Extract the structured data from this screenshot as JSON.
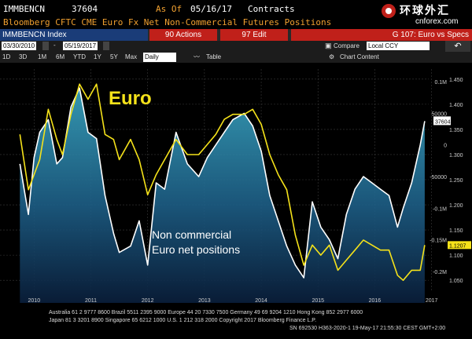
{
  "terminal": {
    "ticker": "IMMBENCN",
    "value": "37604",
    "as_of_label": "As Of",
    "as_of_date": "05/16/17",
    "units": "Contracts",
    "description": "Bloomberg CFTC CME Euro Fx Net Non-Commercial Futures Positions"
  },
  "logo": {
    "name": "环球外汇",
    "site": "cnforex.com"
  },
  "toolbar": {
    "index_label": "IMMBENCN Index",
    "actions_label": "90 Actions",
    "edit_label": "97 Edit",
    "g_label": "G 107: Euro vs Specs"
  },
  "date_bar": {
    "start_date": "03/30/2010",
    "end_date": "05/19/2017",
    "compare_label": "Compare",
    "currency": "Local CCY"
  },
  "period_bar": {
    "periods": [
      "1D",
      "3D",
      "1M",
      "6M",
      "YTD",
      "1Y",
      "5Y",
      "Max"
    ],
    "frequency": "Daily",
    "table_label": "Table",
    "chart_content_label": "Chart Content"
  },
  "footer": {
    "line1": "Australia 61 2 9777 8600 Brazil 5511 2395 9000 Europe 44 20 7330 7500 Germany 49 69 9204 1210 Hong Kong 852 2977 6000",
    "line2": "Japan 81 3 3201 8900          Singapore 65 6212 1000          U.S. 1 212 318 2000          Copyright 2017 Bloomberg Finance L.P.",
    "line3": "SN 692530 H363-2020-1 19-May-17 21:55:30 CEST GMT+2:00"
  },
  "colors": {
    "euro_line": "#f5e21a",
    "positions_line": "#ffffff",
    "area_top": "#2f9ab8",
    "area_bottom": "#0a1f3c",
    "annotation_euro": "#f5e21a",
    "last_value_label": "#f5e21a"
  },
  "chart_data": {
    "type": "line",
    "x_tick_labels": [
      "2010",
      "2011",
      "2012",
      "2013",
      "2014",
      "2015",
      "2016",
      "2017"
    ],
    "annotations": [
      "Euro",
      "Non commercial",
      "Euro net positions"
    ],
    "right_axis_prices": {
      "ticks": [
        "1.450",
        "1.400",
        "1.350",
        "1.300",
        "1.250",
        "1.200",
        "1.150",
        "1.100",
        "1.050"
      ],
      "ylim": [
        1.03,
        1.47
      ]
    },
    "left_axis_positions": {
      "ticks": [
        "0.1M",
        "50000",
        "0",
        "-50000",
        "-0.1M",
        "-0.15M",
        "-0.2M"
      ],
      "ylim": [
        -0.23,
        0.12
      ]
    },
    "last_values": {
      "positions": "37604",
      "euro": "1.1207"
    },
    "series": [
      {
        "name": "Euro",
        "axis": "right",
        "x": [
          2010.25,
          2010.4,
          2010.5,
          2010.6,
          2010.75,
          2010.9,
          2011.0,
          2011.15,
          2011.3,
          2011.45,
          2011.6,
          2011.75,
          2011.9,
          2012.0,
          2012.2,
          2012.35,
          2012.5,
          2012.65,
          2012.8,
          2013.0,
          2013.2,
          2013.4,
          2013.55,
          2013.7,
          2013.85,
          2014.0,
          2014.2,
          2014.35,
          2014.5,
          2014.65,
          2014.8,
          2014.95,
          2015.1,
          2015.25,
          2015.4,
          2015.55,
          2015.7,
          2015.85,
          2016.0,
          2016.15,
          2016.3,
          2016.45,
          2016.6,
          2016.75,
          2016.9,
          2017.0,
          2017.15,
          2017.3,
          2017.38
        ],
        "values": [
          1.34,
          1.23,
          1.26,
          1.29,
          1.39,
          1.33,
          1.3,
          1.38,
          1.44,
          1.41,
          1.44,
          1.34,
          1.33,
          1.29,
          1.33,
          1.29,
          1.22,
          1.26,
          1.29,
          1.33,
          1.3,
          1.3,
          1.32,
          1.34,
          1.37,
          1.38,
          1.38,
          1.39,
          1.36,
          1.3,
          1.26,
          1.23,
          1.14,
          1.08,
          1.12,
          1.1,
          1.12,
          1.07,
          1.09,
          1.11,
          1.13,
          1.12,
          1.11,
          1.11,
          1.06,
          1.05,
          1.07,
          1.07,
          1.12
        ]
      },
      {
        "name": "Non commercial Euro net positions",
        "axis": "left",
        "x": [
          2010.25,
          2010.4,
          2010.5,
          2010.6,
          2010.75,
          2010.9,
          2011.0,
          2011.15,
          2011.3,
          2011.45,
          2011.6,
          2011.75,
          2011.9,
          2012.0,
          2012.2,
          2012.35,
          2012.5,
          2012.65,
          2012.8,
          2013.0,
          2013.2,
          2013.4,
          2013.55,
          2013.7,
          2013.85,
          2014.0,
          2014.2,
          2014.35,
          2014.5,
          2014.65,
          2014.8,
          2014.95,
          2015.1,
          2015.25,
          2015.4,
          2015.55,
          2015.7,
          2015.85,
          2016.0,
          2016.15,
          2016.3,
          2016.45,
          2016.6,
          2016.75,
          2016.9,
          2017.0,
          2017.15,
          2017.3,
          2017.38
        ],
        "values": [
          -0.03,
          -0.11,
          -0.02,
          0.02,
          0.04,
          -0.03,
          -0.02,
          0.06,
          0.09,
          0.02,
          0.01,
          -0.08,
          -0.14,
          -0.17,
          -0.16,
          -0.12,
          -0.19,
          -0.06,
          -0.07,
          0.02,
          -0.03,
          -0.05,
          -0.02,
          0.0,
          0.02,
          0.04,
          0.05,
          0.03,
          -0.01,
          -0.08,
          -0.12,
          -0.16,
          -0.19,
          -0.21,
          -0.09,
          -0.13,
          -0.15,
          -0.18,
          -0.11,
          -0.07,
          -0.05,
          -0.06,
          -0.07,
          -0.08,
          -0.13,
          -0.1,
          -0.06,
          0.0,
          0.0376
        ]
      }
    ]
  }
}
